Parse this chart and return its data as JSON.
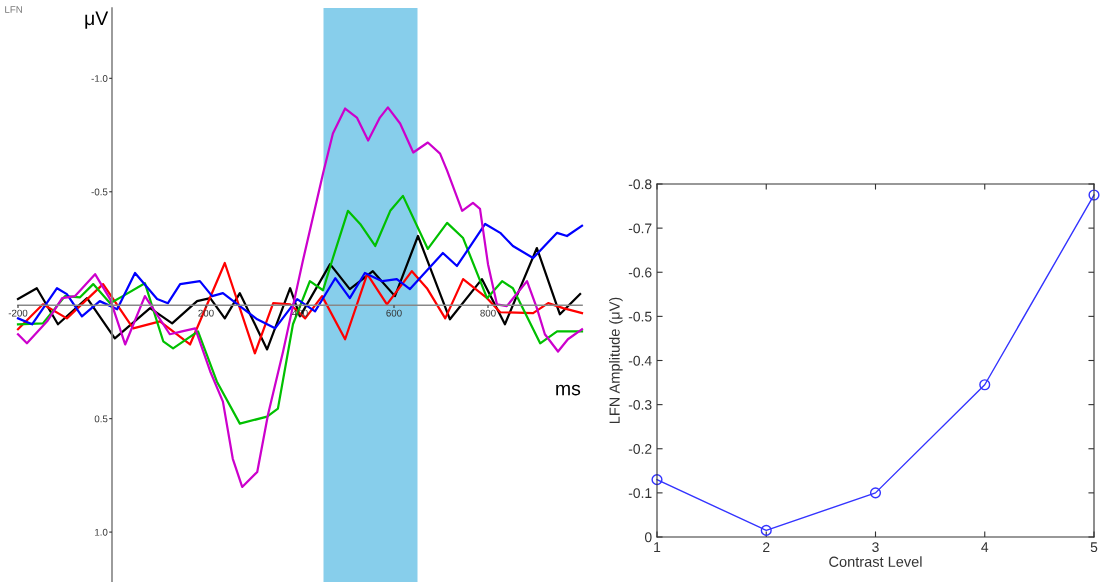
{
  "chart_data": [
    {
      "type": "line",
      "xlabel": "ms",
      "ylabel": "μV",
      "annotations": [
        "LFN"
      ],
      "xlim": [
        -200,
        1000
      ],
      "ylim": [
        1.22,
        -1.31
      ],
      "xticks": [
        -200,
        200,
        400,
        600,
        800
      ],
      "yticks": [
        {
          "value": -1,
          "label": "-1.0"
        },
        {
          "value": -0.5,
          "label": "-0.5"
        },
        {
          "value": 0.5,
          "label": "0.5"
        },
        {
          "value": 1,
          "label": "1.0"
        }
      ],
      "bands": [
        {
          "axis": "x",
          "from": 450,
          "to": 650,
          "color": "#87ceeb"
        }
      ],
      "grid": false,
      "legend": false,
      "marker": "none",
      "line_style": "solid",
      "series": [
        {
          "color": "#000000",
          "x": [
            -200,
            -160,
            -115,
            -53,
            6,
            81,
            128,
            181,
            209,
            240,
            272,
            330,
            379,
            400,
            464,
            506,
            555,
            602,
            651,
            719,
            787,
            836,
            904,
            953,
            996
          ],
          "values": [
            -0.027,
            -0.075,
            0.084,
            -0.031,
            0.146,
            0.013,
            0.08,
            -0.018,
            -0.031,
            0.058,
            -0.053,
            0.195,
            -0.075,
            0.049,
            -0.181,
            -0.071,
            -0.15,
            -0.04,
            -0.305,
            0.062,
            -0.115,
            0.084,
            -0.252,
            0.04,
            -0.049
          ]
        },
        {
          "color": "#ff0000",
          "x": [
            -200,
            -147,
            -96,
            -19,
            45,
            102,
            166,
            240,
            304,
            343,
            379,
            411,
            447,
            496,
            543,
            585,
            638,
            670,
            709,
            747,
            798,
            826,
            896,
            928,
            960,
            1000
          ],
          "values": [
            0.106,
            -0.004,
            0.058,
            -0.093,
            0.102,
            0.071,
            0.173,
            -0.186,
            0.212,
            -0.009,
            -0.004,
            0.058,
            -0.04,
            0.15,
            -0.137,
            -0.004,
            -0.15,
            -0.075,
            0.058,
            -0.115,
            -0.031,
            0.031,
            0.035,
            -0.009,
            0.013,
            0.035
          ]
        },
        {
          "color": "#00c000",
          "x": [
            -200,
            -147,
            -100,
            -68,
            -40,
            -4,
            23,
            70,
            109,
            130,
            183,
            223,
            272,
            330,
            353,
            385,
            421,
            449,
            470,
            502,
            528,
            560,
            592,
            619,
            672,
            713,
            747,
            798,
            830,
            853,
            911,
            947,
            1000
          ],
          "values": [
            0.084,
            0.08,
            -0.04,
            -0.035,
            -0.093,
            -0.009,
            -0.04,
            -0.097,
            0.159,
            0.19,
            0.115,
            0.336,
            0.522,
            0.491,
            0.456,
            0.084,
            -0.106,
            -0.066,
            -0.208,
            -0.416,
            -0.358,
            -0.261,
            -0.416,
            -0.482,
            -0.248,
            -0.363,
            -0.296,
            -0.031,
            -0.106,
            -0.075,
            0.168,
            0.115,
            0.115
          ]
        },
        {
          "color": "#0000ff",
          "x": [
            -200,
            -170,
            -117,
            -96,
            -64,
            -26,
            11,
            49,
            96,
            119,
            145,
            187,
            213,
            236,
            272,
            309,
            347,
            394,
            432,
            475,
            506,
            538,
            575,
            606,
            634,
            704,
            734,
            794,
            826,
            853,
            896,
            947,
            968,
            1000
          ],
          "values": [
            0.058,
            0.084,
            -0.075,
            -0.049,
            0.049,
            -0.018,
            0.018,
            -0.142,
            -0.027,
            -0.009,
            -0.093,
            -0.106,
            -0.04,
            -0.053,
            0.004,
            0.062,
            0.102,
            -0.027,
            0.027,
            -0.119,
            -0.031,
            -0.142,
            -0.106,
            -0.115,
            -0.071,
            -0.23,
            -0.173,
            -0.358,
            -0.319,
            -0.261,
            -0.208,
            -0.319,
            -0.305,
            -0.35
          ]
        },
        {
          "color": "#cc00cc",
          "x": [
            -200,
            -181,
            -138,
            -106,
            -79,
            -36,
            -4,
            28,
            70,
            123,
            149,
            177,
            209,
            236,
            257,
            277,
            309,
            332,
            364,
            385,
            406,
            449,
            470,
            496,
            521,
            545,
            570,
            587,
            613,
            641,
            672,
            698,
            713,
            745,
            768,
            783,
            800,
            819,
            840,
            883,
            904,
            921,
            949,
            970,
            1000
          ],
          "values": [
            0.128,
            0.168,
            0.071,
            -0.031,
            -0.04,
            -0.137,
            -0.027,
            0.173,
            -0.04,
            0.128,
            0.115,
            0.102,
            0.292,
            0.425,
            0.677,
            0.801,
            0.735,
            0.482,
            0.204,
            0.004,
            -0.195,
            -0.58,
            -0.757,
            -0.867,
            -0.827,
            -0.726,
            -0.827,
            -0.872,
            -0.801,
            -0.673,
            -0.717,
            -0.668,
            -0.593,
            -0.416,
            -0.451,
            -0.425,
            -0.181,
            -0.004,
            0.004,
            -0.106,
            0.013,
            0.128,
            0.204,
            0.15,
            0.106
          ]
        }
      ]
    },
    {
      "type": "line",
      "xlabel": "Contrast Level",
      "ylabel": "LFN Amplitude (μV)",
      "x": [
        1,
        2,
        3,
        4,
        5
      ],
      "xlim": [
        1,
        5
      ],
      "xticks": [
        1,
        2,
        3,
        4,
        5
      ],
      "ylim": [
        0,
        -0.8
      ],
      "yticks": [
        0,
        -0.1,
        -0.2,
        -0.3,
        -0.4,
        -0.5,
        -0.6,
        -0.7,
        -0.8
      ],
      "grid": false,
      "legend": false,
      "marker": "circle",
      "line_style": "solid",
      "series": [
        {
          "color": "#3333ff",
          "values": [
            -0.13,
            -0.015,
            -0.1,
            -0.345,
            -0.775
          ]
        }
      ]
    }
  ]
}
